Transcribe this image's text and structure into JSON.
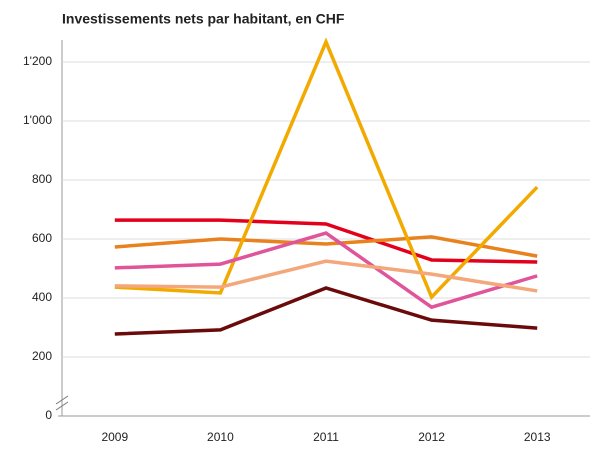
{
  "chart_data": {
    "type": "line",
    "title": "Investissements nets par habitant, en CHF",
    "categories": [
      "2009",
      "2010",
      "2011",
      "2012",
      "2013"
    ],
    "series": [
      {
        "color": "#e3001b",
        "values": [
          664,
          664,
          651,
          529,
          522
        ]
      },
      {
        "color": "#e8821e",
        "values": [
          573,
          600,
          583,
          607,
          542
        ]
      },
      {
        "color": "#f2a900",
        "values": [
          437,
          417,
          1268,
          403,
          776
        ]
      },
      {
        "color": "#e0559a",
        "values": [
          502,
          515,
          620,
          369,
          475
        ]
      },
      {
        "color": "#f4a77a",
        "values": [
          441,
          437,
          525,
          481,
          424
        ]
      },
      {
        "color": "#6b0a0a",
        "values": [
          278,
          292,
          434,
          325,
          298
        ]
      }
    ],
    "ylim": [
      0,
      1300
    ],
    "yticks": [
      0,
      200,
      400,
      600,
      800,
      {
        "value": 1000,
        "label": "1'000"
      },
      {
        "value": 1200,
        "label": "1'200"
      }
    ],
    "grid": true
  }
}
